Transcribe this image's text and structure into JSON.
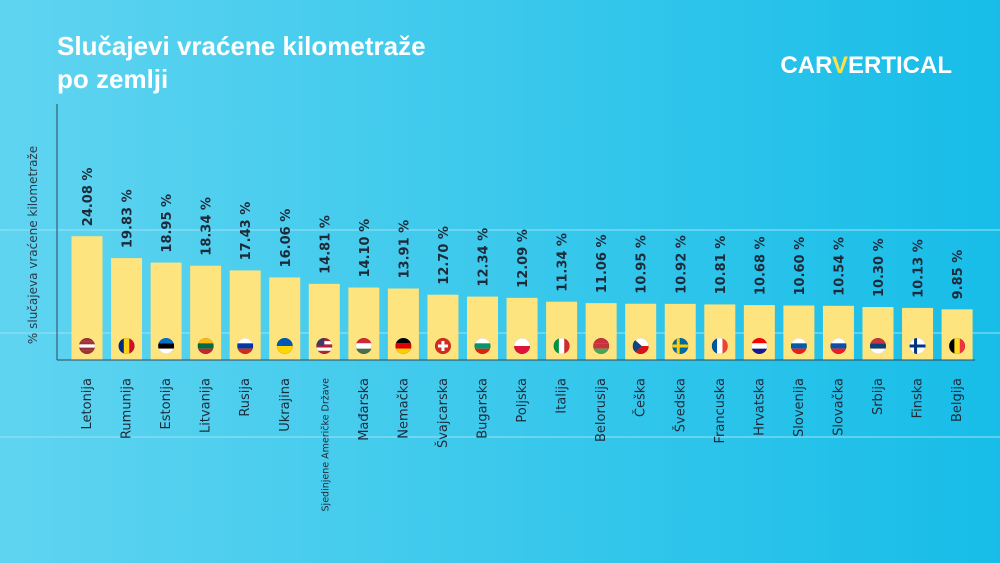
{
  "chart_data": {
    "type": "bar",
    "title": [
      "Slučajevi vraćene kilometraže",
      "po zemlji"
    ],
    "logo": [
      "CAR",
      "V",
      "ERTICAL"
    ],
    "y_label": "% slučajeva vraćene kilometraže",
    "categories": [
      "Letonija",
      "Rumunija",
      "Estonija",
      "Litvanija",
      "Rusija",
      "Ukrajina",
      "Sjedinjene Američke Države",
      "Mađarska",
      "Nemačka",
      "Švajcarska",
      "Bugarska",
      "Poljska",
      "Italija",
      "Belorusija",
      "Češka",
      "Švedska",
      "Francuska",
      "Hrvatska",
      "Slovenija",
      "Slovačka",
      "Srbija",
      "Finska",
      "Belgija"
    ],
    "values": [
      24.08,
      19.83,
      18.95,
      18.34,
      17.43,
      16.06,
      14.81,
      14.1,
      13.91,
      12.7,
      12.34,
      12.09,
      11.34,
      11.06,
      10.95,
      10.92,
      10.81,
      10.68,
      10.6,
      10.54,
      10.3,
      10.13,
      9.85
    ],
    "value_labels": [
      "24.08 %",
      "19.83 %",
      "18.95 %",
      "18.34 %",
      "17.43 %",
      "16.06 %",
      "14.81 %",
      "14.10 %",
      "13.91 %",
      "12.70 %",
      "12.34 %",
      "12.09 %",
      "11.34 %",
      "11.06 %",
      "10.95 %",
      "10.92 %",
      "10.81 %",
      "10.68 %",
      "10.60 %",
      "10.54 %",
      "10.30 %",
      "10.13 %",
      "9.85 %"
    ],
    "color": "#fde47f",
    "ylim": [
      0,
      50
    ]
  }
}
